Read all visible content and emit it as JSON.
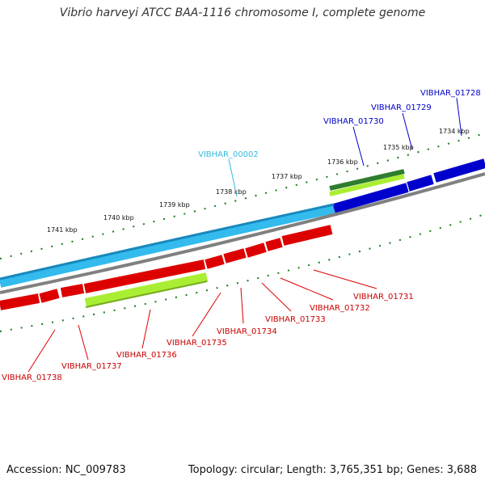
{
  "title": "Vibrio harveyi ATCC BAA-1116 chromosome I, complete genome",
  "footer": {
    "accession": "Accession: NC_009783",
    "stats": "Topology: circular; Length: 3,765,351 bp; Genes: 3,688"
  },
  "colors": {
    "forward_cds": "#0000cc",
    "reverse_cds": "#dd0000",
    "rna_gene": "#33bbee",
    "green_feature": "#2e7d2e",
    "yellowgreen_feature": "#aaee33",
    "backbone": "#808080",
    "tick": "#1a7a1a"
  },
  "ticks": [
    "1734 kbp",
    "1735 kbp",
    "1736 kbp",
    "1737 kbp",
    "1738 kbp",
    "1739 kbp",
    "1740 kbp",
    "1741 kbp"
  ],
  "labels": {
    "top": [
      {
        "text": "VIBHAR_01728",
        "color": "#0000cc"
      },
      {
        "text": "VIBHAR_01729",
        "color": "#0000cc"
      },
      {
        "text": "VIBHAR_01730",
        "color": "#0000cc"
      },
      {
        "text": "VIBHAR_00002",
        "color": "#33bbdd"
      }
    ],
    "bottom": [
      {
        "text": "VIBHAR_01731",
        "color": "#cc0000"
      },
      {
        "text": "VIBHAR_01732",
        "color": "#cc0000"
      },
      {
        "text": "VIBHAR_01733",
        "color": "#cc0000"
      },
      {
        "text": "VIBHAR_01734",
        "color": "#cc0000"
      },
      {
        "text": "VIBHAR_01735",
        "color": "#cc0000"
      },
      {
        "text": "VIBHAR_01736",
        "color": "#cc0000"
      },
      {
        "text": "VIBHAR_01737",
        "color": "#cc0000"
      },
      {
        "text": "VIBHAR_01738",
        "color": "#cc0000"
      }
    ]
  }
}
